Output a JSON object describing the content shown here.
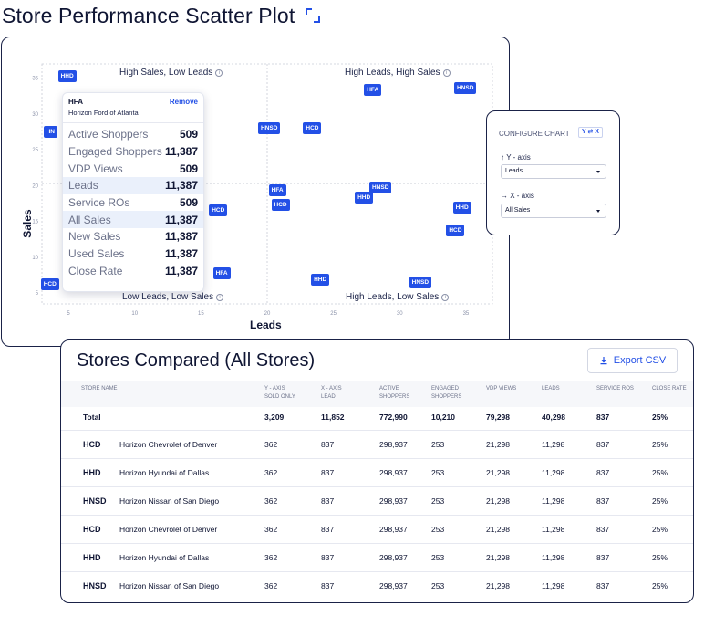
{
  "page": {
    "title": "Store Performance Scatter Plot"
  },
  "icons": {
    "expand": "expand-corners-icon",
    "info": "info-icon",
    "export": "download-icon",
    "swap": "swap-arrows-icon",
    "up_arrow": "arrow-up-icon",
    "right_arrow": "arrow-right-icon",
    "caret": "chevron-down-icon"
  },
  "colors": {
    "accent": "#2350e6",
    "ink": "#0f1533",
    "grid": "#c9ccd6"
  },
  "chart_data": {
    "type": "scatter",
    "xlabel": "Leads",
    "ylabel": "Sales",
    "xlim": [
      3,
      37
    ],
    "ylim": [
      3.5,
      37
    ],
    "xticks": [
      5,
      10,
      15,
      20,
      25,
      30,
      35
    ],
    "yticks": [
      5,
      10,
      15,
      20,
      25,
      30,
      35
    ],
    "quadrants": {
      "top_left": "High Sales, Low Leads",
      "top_right": "High Leads, High Sales",
      "bottom_left": "Low Leads, Low Sales",
      "bottom_right": "High Leads, Low Sales"
    },
    "points": [
      {
        "label": "HHD",
        "x": 4.9,
        "y": 35.3
      },
      {
        "label": "HN",
        "x": 3.8,
        "y": 27.5
      },
      {
        "label": "HCD",
        "x": 3.6,
        "y": 6.2
      },
      {
        "label": "HCD",
        "x": 16.3,
        "y": 16.5
      },
      {
        "label": "HFA",
        "x": 16.6,
        "y": 7.8
      },
      {
        "label": "HNSD",
        "x": 20.0,
        "y": 28.0
      },
      {
        "label": "HCD",
        "x": 23.4,
        "y": 28.0
      },
      {
        "label": "HFA",
        "x": 28.0,
        "y": 33.4
      },
      {
        "label": "HNSD",
        "x": 34.8,
        "y": 33.6
      },
      {
        "label": "HFA",
        "x": 20.8,
        "y": 19.3
      },
      {
        "label": "HCD",
        "x": 21.0,
        "y": 17.3
      },
      {
        "label": "HNSD",
        "x": 28.4,
        "y": 19.8
      },
      {
        "label": "HHD",
        "x": 27.3,
        "y": 18.3
      },
      {
        "label": "HHD",
        "x": 34.7,
        "y": 17.0
      },
      {
        "label": "HCD",
        "x": 34.2,
        "y": 13.8
      },
      {
        "label": "HHD",
        "x": 24.0,
        "y": 6.9
      },
      {
        "label": "HNSD",
        "x": 31.4,
        "y": 6.5
      }
    ]
  },
  "tooltip": {
    "code": "HFA",
    "name": "Horizon Ford of Atlanta",
    "remove_label": "Remove",
    "rows": [
      {
        "label": "Active Shoppers",
        "value": "509",
        "highlight": false
      },
      {
        "label": "Engaged Shoppers",
        "value": "11,387",
        "highlight": false
      },
      {
        "label": "VDP Views",
        "value": "509",
        "highlight": false
      },
      {
        "label": "Leads",
        "value": "11,387",
        "highlight": true
      },
      {
        "label": "Service ROs",
        "value": "509",
        "highlight": false
      },
      {
        "label": "All Sales",
        "value": "11,387",
        "highlight": true
      },
      {
        "label": "New Sales",
        "value": "11,387",
        "highlight": false
      },
      {
        "label": "Used Sales",
        "value": "11,387",
        "highlight": false
      },
      {
        "label": "Close Rate",
        "value": "11,387",
        "highlight": false
      }
    ]
  },
  "config": {
    "title": "CONFIGURE CHART",
    "swap_label": "Y ⇄ X",
    "y_axis_label": "Y - axis",
    "y_axis_value": "Leads",
    "x_axis_label": "X - axis",
    "x_axis_value": "All Sales"
  },
  "table": {
    "title": "Stores Compared (All Stores)",
    "export_label": "Export CSV",
    "headers": [
      "STORE NAME",
      "Y - AXIS\nSOLD ONLY",
      "X - AXIS\nLEAD",
      "ACTIVE\nSHOPPERS",
      "ENGAGED\nSHOPPERS",
      "VDP VIEWS",
      "LEADS",
      "SERVICE ROS",
      "CLOSE RATE"
    ],
    "total": {
      "label": "Total",
      "values": [
        "3,209",
        "11,852",
        "772,990",
        "10,210",
        "79,298",
        "40,298",
        "837",
        "25%"
      ]
    },
    "rows": [
      {
        "code": "HCD",
        "name": "Horizon Chevrolet of Denver",
        "values": [
          "362",
          "837",
          "298,937",
          "253",
          "21,298",
          "11,298",
          "837",
          "25%"
        ]
      },
      {
        "code": "HHD",
        "name": "Horizon Hyundai of Dallas",
        "values": [
          "362",
          "837",
          "298,937",
          "253",
          "21,298",
          "11,298",
          "837",
          "25%"
        ]
      },
      {
        "code": "HNSD",
        "name": "Horizon Nissan of San Diego",
        "values": [
          "362",
          "837",
          "298,937",
          "253",
          "21,298",
          "11,298",
          "837",
          "25%"
        ]
      },
      {
        "code": "HCD",
        "name": "Horizon Chevrolet of Denver",
        "values": [
          "362",
          "837",
          "298,937",
          "253",
          "21,298",
          "11,298",
          "837",
          "25%"
        ]
      },
      {
        "code": "HHD",
        "name": "Horizon Hyundai of Dallas",
        "values": [
          "362",
          "837",
          "298,937",
          "253",
          "21,298",
          "11,298",
          "837",
          "25%"
        ]
      },
      {
        "code": "HNSD",
        "name": "Horizon Nissan of San Diego",
        "values": [
          "362",
          "837",
          "298,937",
          "253",
          "21,298",
          "11,298",
          "837",
          "25%"
        ]
      }
    ]
  }
}
